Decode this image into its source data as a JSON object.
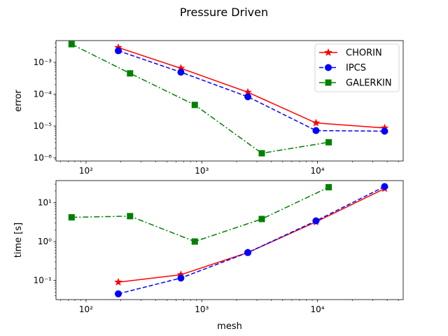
{
  "chart_data": {
    "type": "line",
    "suptitle": "Pressure Driven",
    "xlabel": "mesh",
    "xscale": "log",
    "xlim": [
      55,
      55000
    ],
    "legend": {
      "placement": "top-right",
      "entries": [
        "CHORIN",
        "IPCS",
        "GALERKIN"
      ]
    },
    "series_styles": {
      "CHORIN": {
        "color": "#ff0000",
        "marker": "star",
        "linestyle": "solid"
      },
      "IPCS": {
        "color": "#0000ff",
        "marker": "circle",
        "linestyle": "dashed"
      },
      "GALERKIN": {
        "color": "#008000",
        "marker": "square",
        "linestyle": "dashdot"
      }
    },
    "subplots": [
      {
        "id": "error",
        "ylabel": "error",
        "yscale": "log",
        "ylim": [
          8e-07,
          0.0048
        ],
        "yticks": [
          {
            "value": 1e-06,
            "label": "10⁻⁶"
          },
          {
            "value": 1e-05,
            "label": "10⁻⁵"
          },
          {
            "value": 0.0001,
            "label": "10⁻⁴"
          },
          {
            "value": 0.001,
            "label": "10⁻³"
          }
        ],
        "xticks": [
          {
            "value": 100,
            "label": "10²"
          },
          {
            "value": 1000,
            "label": "10³"
          },
          {
            "value": 10000,
            "label": "10⁴"
          }
        ],
        "series": [
          {
            "name": "CHORIN",
            "x": [
              190,
              660,
              2500,
              9700,
              38000
            ],
            "y": [
              0.0029,
              0.00065,
              0.000115,
              1.25e-05,
              8.7e-06
            ]
          },
          {
            "name": "IPCS",
            "x": [
              190,
              660,
              2500,
              9700,
              38000
            ],
            "y": [
              0.0023,
              0.00049,
              8.3e-05,
              7.2e-06,
              6.9e-06
            ]
          },
          {
            "name": "GALERKIN",
            "x": [
              75,
              240,
              870,
              3300,
              12500
            ],
            "y": [
              0.0037,
              0.00045,
              4.6e-05,
              1.4e-06,
              3.1e-06
            ]
          }
        ]
      },
      {
        "id": "time",
        "ylabel": "time [s]",
        "yscale": "log",
        "ylim": [
          0.032,
          37
        ],
        "yticks": [
          {
            "value": 0.1,
            "label": "10⁻¹"
          },
          {
            "value": 1,
            "label": "10⁰"
          },
          {
            "value": 10,
            "label": "10¹"
          }
        ],
        "xticks": [
          {
            "value": 100,
            "label": "10²"
          },
          {
            "value": 1000,
            "label": "10³"
          },
          {
            "value": 10000,
            "label": "10⁴"
          }
        ],
        "series": [
          {
            "name": "CHORIN",
            "x": [
              190,
              660,
              2500,
              9700,
              38000
            ],
            "y": [
              0.09,
              0.14,
              0.52,
              3.2,
              23
            ]
          },
          {
            "name": "IPCS",
            "x": [
              190,
              660,
              2500,
              9700,
              38000
            ],
            "y": [
              0.045,
              0.115,
              0.52,
              3.4,
              26
            ]
          },
          {
            "name": "GALERKIN",
            "x": [
              75,
              240,
              870,
              3300,
              12500
            ],
            "y": [
              4.2,
              4.5,
              1.0,
              3.8,
              25
            ]
          }
        ]
      }
    ]
  }
}
